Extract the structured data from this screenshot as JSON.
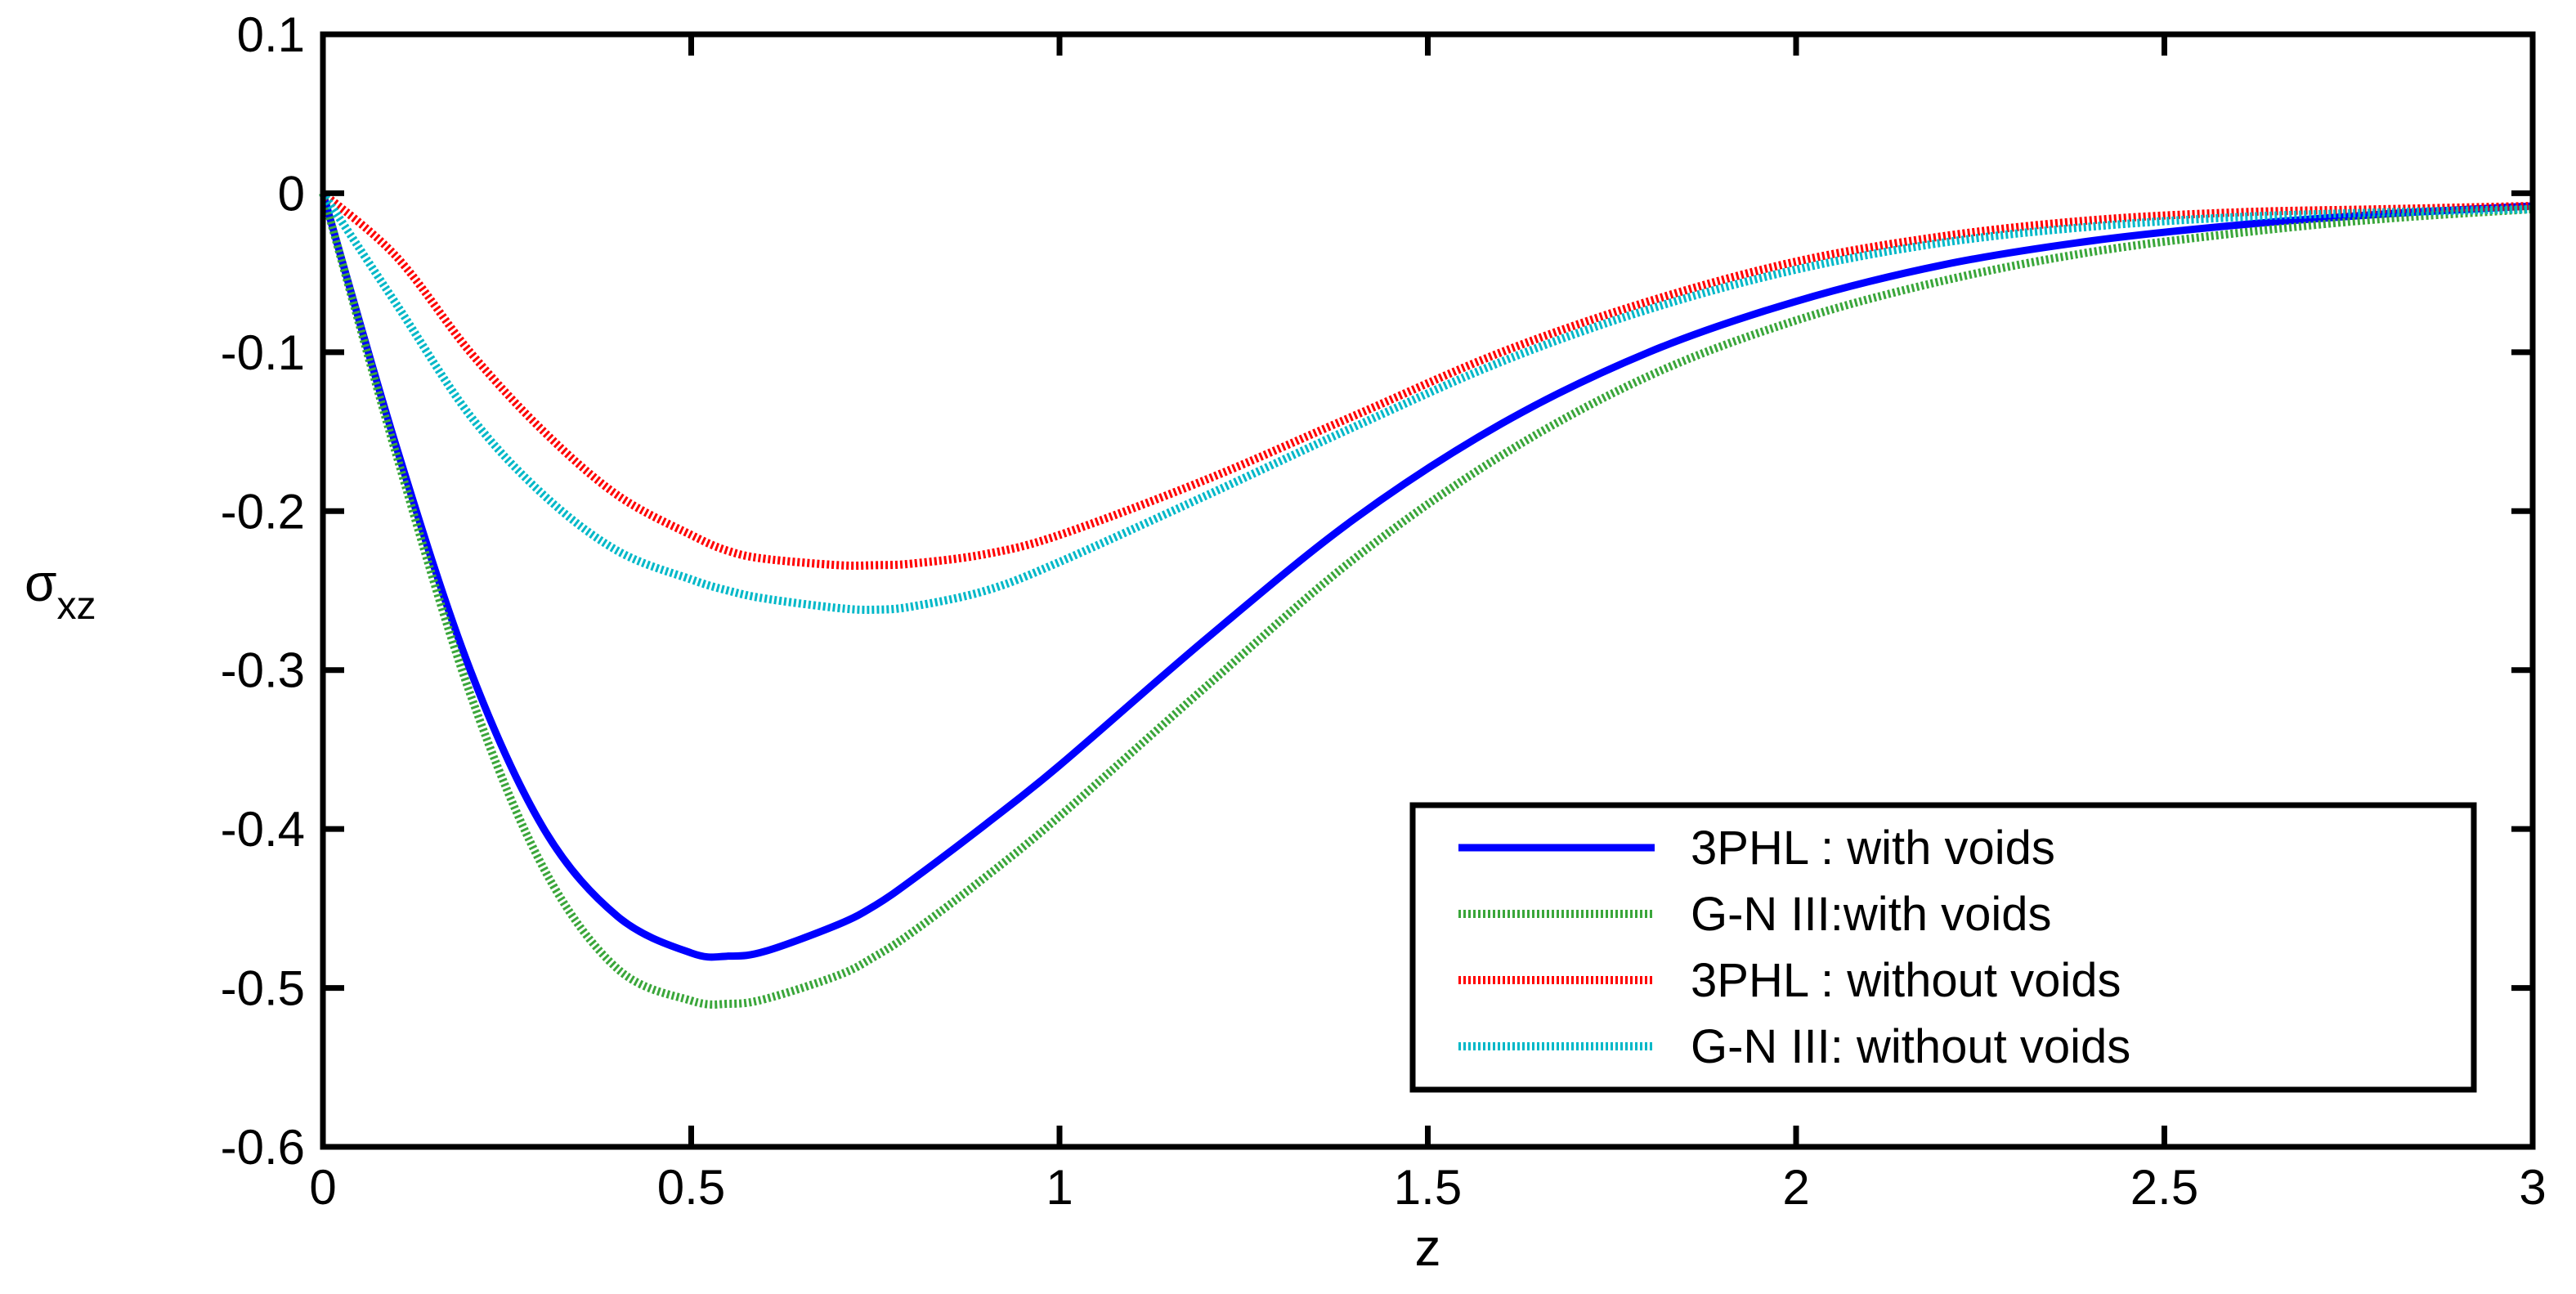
{
  "chart_data": {
    "type": "line",
    "title": "",
    "xlabel": "z",
    "ylabel": "σ",
    "ylabel_subscript": "xz",
    "xlim": [
      0,
      3
    ],
    "ylim": [
      -0.6,
      0.1
    ],
    "xticks": [
      0,
      0.5,
      1,
      1.5,
      2,
      2.5,
      3
    ],
    "xtick_labels": [
      "0",
      "0.5",
      "1",
      "1.5",
      "2",
      "2.5",
      "3"
    ],
    "yticks": [
      0.1,
      0,
      -0.1,
      -0.2,
      -0.3,
      -0.4,
      -0.5,
      -0.6
    ],
    "ytick_labels": [
      "0.1",
      "0",
      "-0.1",
      "-0.2",
      "-0.3",
      "-0.4",
      "-0.5",
      "-0.6"
    ],
    "grid": false,
    "legend_position": "bottom-right",
    "x": [
      0,
      0.1,
      0.2,
      0.3,
      0.4,
      0.5,
      0.55,
      0.6,
      0.7,
      0.75,
      0.8,
      0.9,
      1.0,
      1.2,
      1.4,
      1.6,
      1.8,
      2.0,
      2.2,
      2.4,
      2.6,
      2.8,
      3.0
    ],
    "series": [
      {
        "name": "3PHL : with voids",
        "color": "#0000ff",
        "style": "solid",
        "values": [
          0,
          -0.16,
          -0.3,
          -0.4,
          -0.455,
          -0.478,
          -0.48,
          -0.477,
          -0.46,
          -0.448,
          -0.432,
          -0.397,
          -0.36,
          -0.28,
          -0.205,
          -0.145,
          -0.1,
          -0.068,
          -0.045,
          -0.03,
          -0.02,
          -0.013,
          -0.008
        ]
      },
      {
        "name": "G-N III:with voids",
        "color": "#3aa63a",
        "style": "dotted",
        "values": [
          0,
          -0.165,
          -0.315,
          -0.425,
          -0.488,
          -0.508,
          -0.51,
          -0.507,
          -0.492,
          -0.48,
          -0.465,
          -0.43,
          -0.392,
          -0.31,
          -0.23,
          -0.165,
          -0.115,
          -0.08,
          -0.055,
          -0.037,
          -0.025,
          -0.016,
          -0.01
        ]
      },
      {
        "name": "3PHL : without voids",
        "color": "#ff0000",
        "style": "dotted",
        "values": [
          0,
          -0.04,
          -0.1,
          -0.15,
          -0.19,
          -0.215,
          -0.225,
          -0.23,
          -0.234,
          -0.234,
          -0.233,
          -0.227,
          -0.215,
          -0.18,
          -0.14,
          -0.1,
          -0.068,
          -0.043,
          -0.027,
          -0.017,
          -0.012,
          -0.01,
          -0.008
        ]
      },
      {
        "name": "G-N III: without voids",
        "color": "#00b8c8",
        "style": "dotted",
        "values": [
          0,
          -0.07,
          -0.14,
          -0.19,
          -0.225,
          -0.243,
          -0.25,
          -0.255,
          -0.261,
          -0.262,
          -0.26,
          -0.25,
          -0.232,
          -0.19,
          -0.147,
          -0.106,
          -0.073,
          -0.048,
          -0.031,
          -0.021,
          -0.015,
          -0.012,
          -0.01
        ]
      }
    ]
  }
}
